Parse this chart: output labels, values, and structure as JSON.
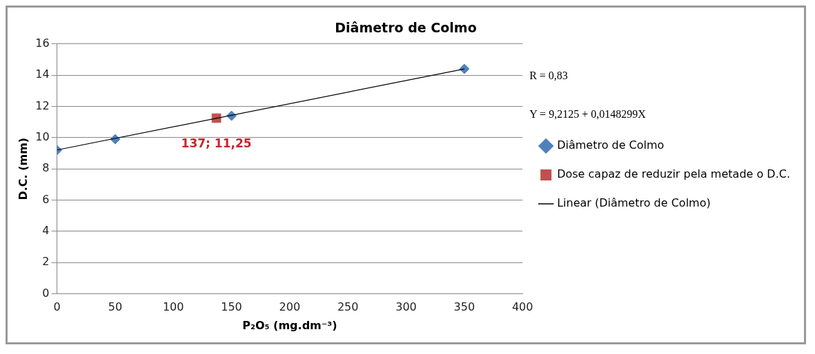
{
  "chart_data": {
    "type": "scatter",
    "title": "Diâmetro de Colmo",
    "xlabel": "P₂O₅ (mg.dm⁻³)",
    "ylabel": "D.C. (mm)",
    "xlim": [
      0,
      400
    ],
    "xticks": [
      0,
      50,
      100,
      150,
      200,
      250,
      300,
      350,
      400
    ],
    "ylim": [
      0,
      16
    ],
    "yticks": [
      0,
      2,
      4,
      6,
      8,
      10,
      12,
      14,
      16
    ],
    "grid": "y",
    "legend": "right",
    "series": [
      {
        "name": "Diâmetro de Colmo",
        "type": "scatter",
        "color": "#4f81bd",
        "marker": "diamond",
        "x": [
          0,
          50,
          150,
          350
        ],
        "values": [
          9.2,
          9.9,
          11.4,
          14.4
        ]
      },
      {
        "name": "Dose capaz de reduzir pela metade o D.C.",
        "type": "scatter",
        "color": "#c0504d",
        "marker": "square",
        "x": [
          137
        ],
        "values": [
          11.25
        ]
      },
      {
        "name": "Linear (Diâmetro de Colmo)",
        "type": "line",
        "color": "#000000",
        "marker": "none",
        "line_style": "solid",
        "x": [
          0,
          350
        ],
        "values": [
          9.21,
          14.4
        ]
      }
    ],
    "annotations": [
      "R = 0,83",
      "Y = 9,2125 + 0,0148299X",
      {
        "text": "137; 11,25",
        "x": 137,
        "y": 11.25
      }
    ]
  }
}
